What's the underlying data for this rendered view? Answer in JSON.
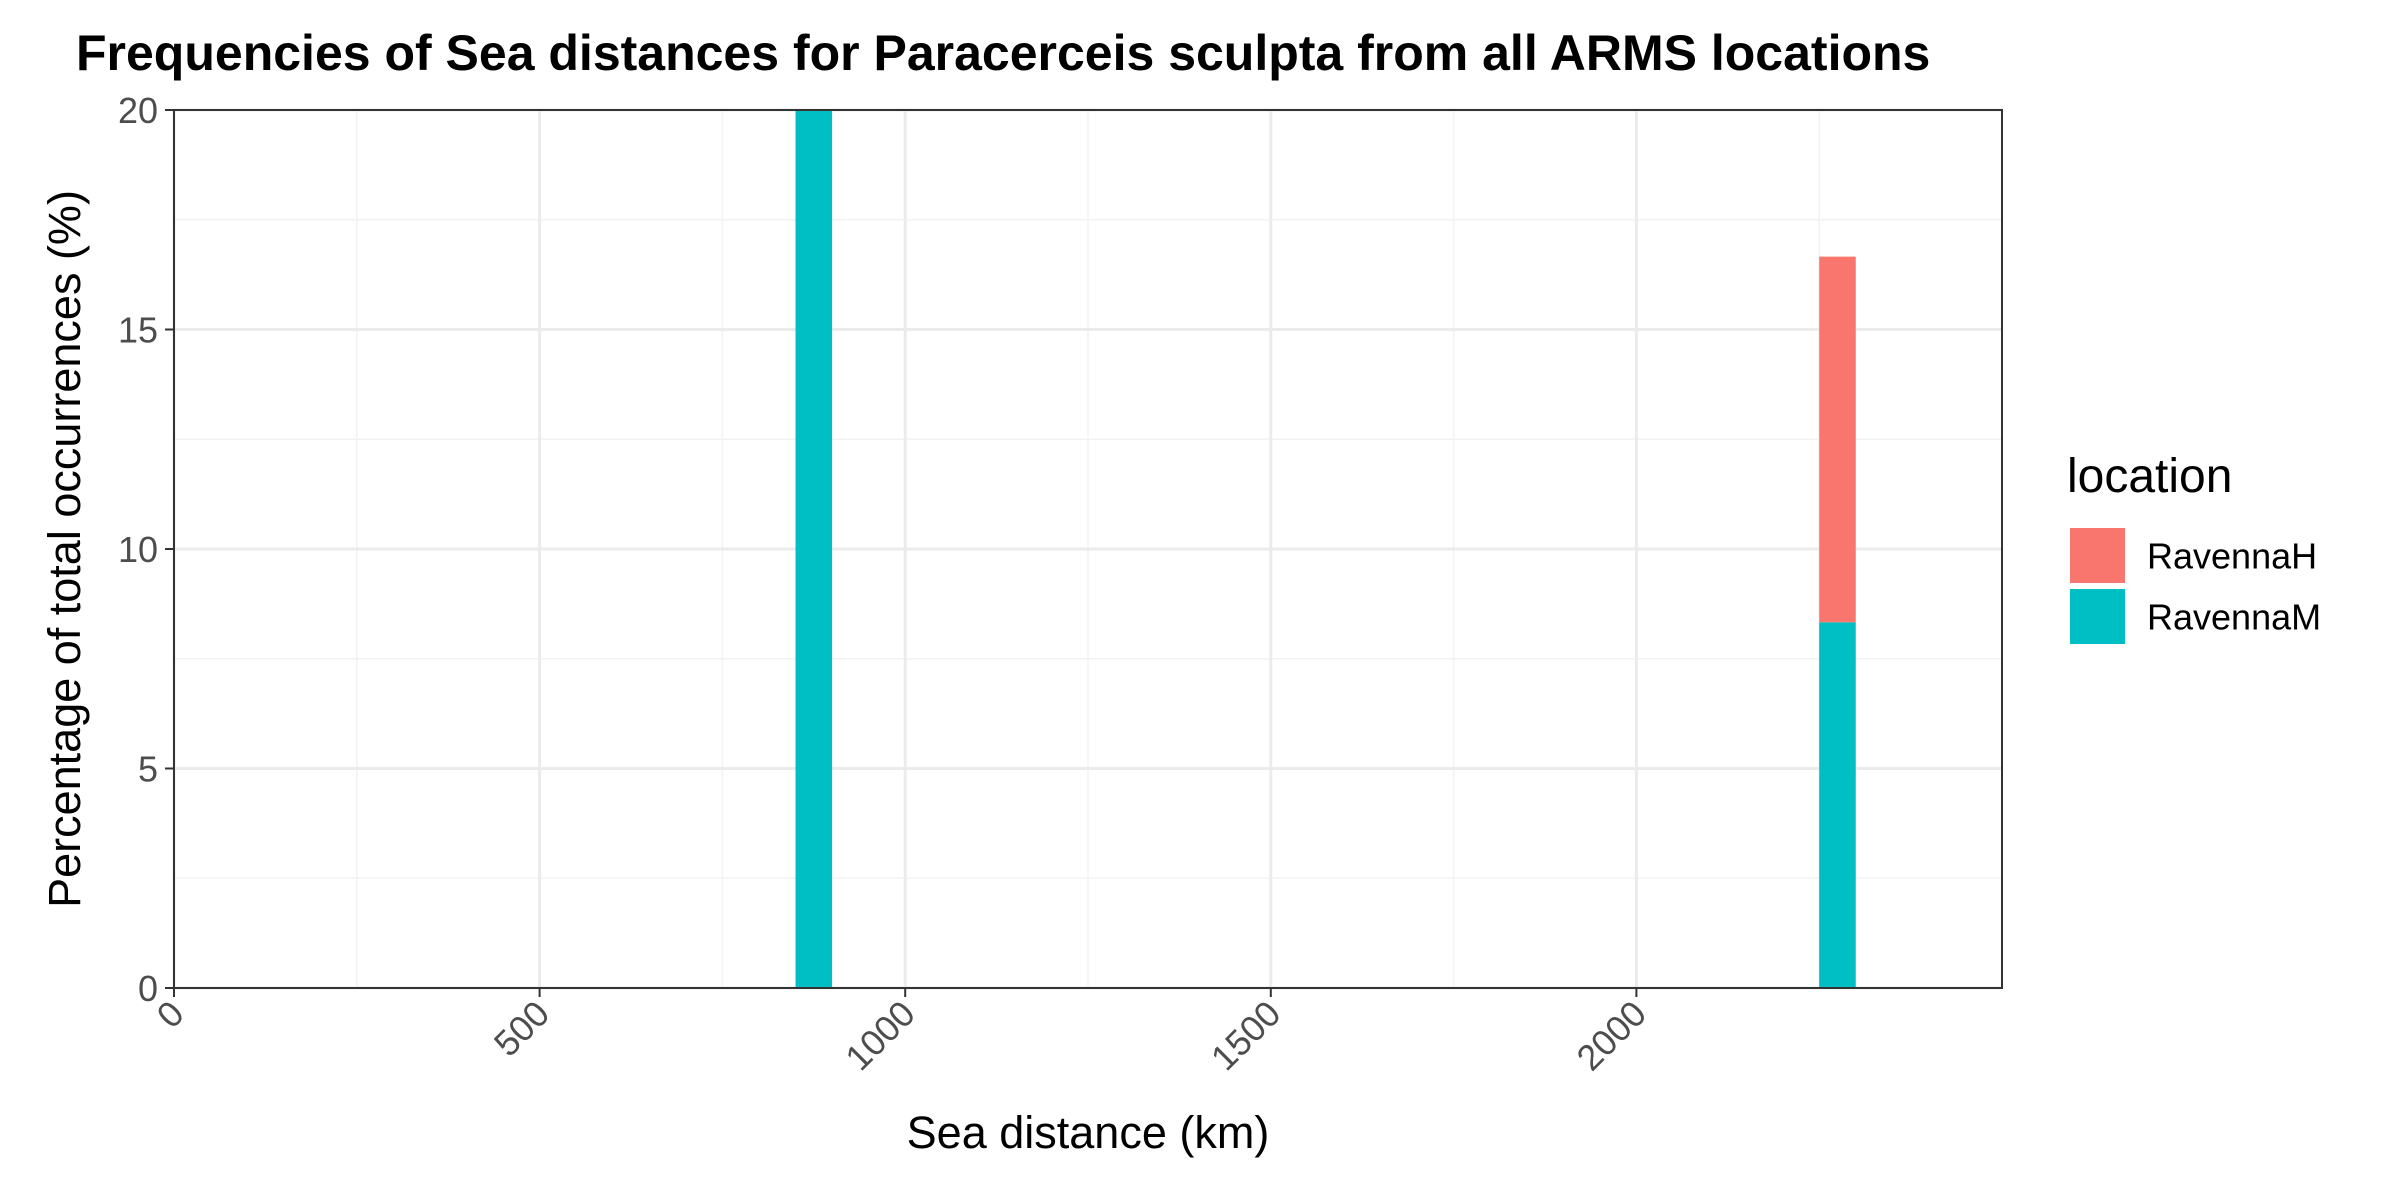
{
  "chart_data": {
    "type": "bar",
    "stacked": true,
    "title": "Frequencies of Sea distances for Paracerceis sculpta from all ARMS locations",
    "xlabel": "Sea distance (km)",
    "ylabel": "Percentage of total occurrences (%)",
    "xlim": [
      0,
      2500
    ],
    "ylim": [
      0,
      20
    ],
    "x_ticks": [
      0,
      500,
      1000,
      1500,
      2000
    ],
    "y_ticks": [
      0,
      5,
      10,
      15,
      20
    ],
    "x_tick_labels": [
      "0",
      "500",
      "1000",
      "1500",
      "2000"
    ],
    "y_tick_labels": [
      "0",
      "5",
      "10",
      "15",
      "20"
    ],
    "grid": true,
    "legend": {
      "title": "location",
      "position": "right",
      "entries": [
        {
          "label": "RavennaH",
          "color": "#F8766D"
        },
        {
          "label": "RavennaM",
          "color": "#00BFC4"
        }
      ]
    },
    "bin_width": 50,
    "series": [
      {
        "name": "RavennaM",
        "color": "#00BFC4",
        "points": [
          {
            "x_start": 850,
            "x_end": 900,
            "y": 20
          },
          {
            "x_start": 2250,
            "x_end": 2300,
            "y": 8.33
          }
        ]
      },
      {
        "name": "RavennaH",
        "color": "#F8766D",
        "points": [
          {
            "x_start": 2250,
            "x_end": 2300,
            "y": 8.33
          }
        ]
      }
    ]
  }
}
